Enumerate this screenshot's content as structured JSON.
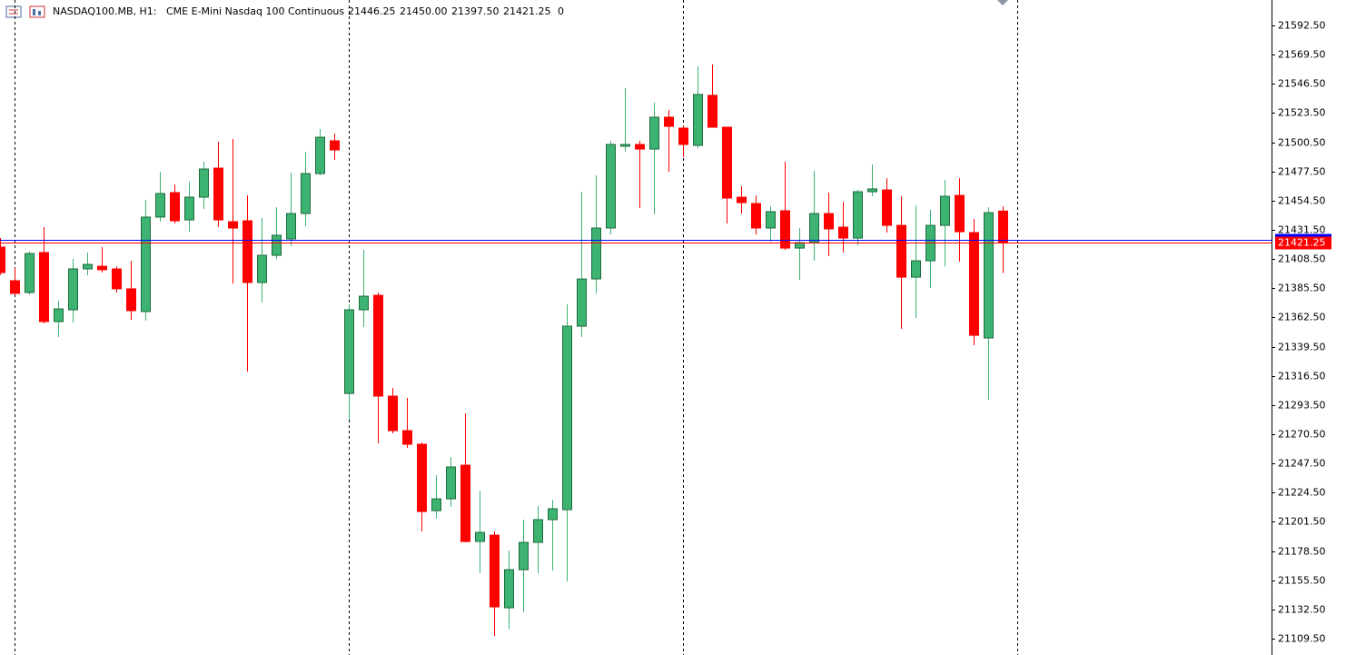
{
  "chart_data": {
    "type": "candlestick",
    "header": {
      "symbol": "NASDAQ100.MB, H1:",
      "description": "CME E-Mini Nasdaq 100 Continuous",
      "ohlc": [
        "21446.25",
        "21450.00",
        "21397.50",
        "21421.25"
      ],
      "volume": "0"
    },
    "open": [
      21417.9,
      21391.4,
      21382.1,
      21413.6,
      21359.2,
      21368.5,
      21400.7,
      21402.8,
      21400.7,
      21385,
      21367.1,
      21441.5,
      21460.8,
      21439.3,
      21457.2,
      21480.1,
      21437.9,
      21438.6,
      21390,
      21411.4,
      21424.3,
      21444.3,
      21475.8,
      21501.6,
      21302.6,
      21368.5,
      21379.9,
      21300.5,
      21273.3,
      21262.6,
      21210.3,
      21219.6,
      21246.1,
      21186,
      21191,
      21133.8,
      21163.8,
      21185.3,
      21203.2,
      21211.1,
      21355.6,
      21392.8,
      21432.9,
      21497.3,
      21498.7,
      21495.1,
      21520.2,
      21511.6,
      21498,
      21537.4,
      21512.3,
      21457.2,
      21452.2,
      21432.9,
      21446.5,
      21417.1,
      21421.4,
      21444.3,
      21433.6,
      21425,
      21461.5,
      21462.9,
      21435,
      21394.2,
      21407.1,
      21435,
      21458.6,
      21429.3,
      21346.3,
      21446.25
    ],
    "high": [
      21425,
      21401.4,
      21414.3,
      21433.6,
      21375.6,
      21408.5,
      21413.6,
      21418,
      21402.8,
      21407.1,
      21455.1,
      21477.3,
      21467.2,
      21469.4,
      21485.1,
      21500.9,
      21503,
      21458.6,
      21440.8,
      21449.3,
      21476.5,
      21493,
      21510.9,
      21507.3,
      21372.8,
      21415.7,
      21382.1,
      21306.9,
      21299.1,
      21264,
      21238.3,
      21252.5,
      21286.9,
      21226.1,
      21193.9,
      21178.9,
      21203.2,
      21213.9,
      21218.9,
      21372.8,
      21461.5,
      21474.4,
      21501.6,
      21543.1,
      21501.6,
      21531.6,
      21525.9,
      21513.7,
      21560.3,
      21561.7,
      21512.3,
      21465.8,
      21458.6,
      21450.1,
      21485.1,
      21432.9,
      21478,
      21460.8,
      21453.6,
      21462.9,
      21483,
      21472.2,
      21457.9,
      21450.8,
      21447.2,
      21470.8,
      21472.2,
      21440,
      21449.3,
      21450
    ],
    "low": [
      21396,
      21380,
      21380.6,
      21357.75,
      21347,
      21358.5,
      21395.7,
      21397.8,
      21382.1,
      21360.6,
      21359.9,
      21437.9,
      21436.5,
      21430,
      21447.9,
      21433.6,
      21389.2,
      21319.8,
      21374.2,
      21408.5,
      21418.6,
      21434.3,
      21474.4,
      21486.6,
      21281.9,
      21354.9,
      21263.3,
      21271.2,
      21259.7,
      21193.9,
      21203.9,
      21213.2,
      21185.3,
      21161,
      21111.6,
      21117.3,
      21130.2,
      21161,
      21163.1,
      21154.5,
      21347,
      21381.4,
      21427.9,
      21493,
      21448.6,
      21443.6,
      21477.3,
      21488.7,
      21495.9,
      21512.3,
      21436.5,
      21444.3,
      21427.9,
      21422.2,
      21415.7,
      21392.1,
      21407.1,
      21410.7,
      21413.6,
      21419.3,
      21457.9,
      21429.3,
      21353.5,
      21362,
      21385.7,
      21402.8,
      21406.4,
      21340.6,
      21297.6,
      21397.5
    ],
    "close": [
      21397.8,
      21381.4,
      21412.8,
      21359.2,
      21369.2,
      21400.7,
      21404.25,
      21400,
      21385,
      21367.8,
      21441.5,
      21460.1,
      21438.6,
      21457.2,
      21479.4,
      21439.3,
      21432.9,
      21390,
      21411.4,
      21427.2,
      21444.3,
      21475.8,
      21504.4,
      21494.4,
      21368.5,
      21379.2,
      21300.5,
      21273.3,
      21262.6,
      21209.6,
      21219.6,
      21244.7,
      21186,
      21193.2,
      21134.5,
      21163.8,
      21185.3,
      21203.2,
      21211.8,
      21355.6,
      21392.8,
      21432.9,
      21498.7,
      21498.7,
      21495.1,
      21520.2,
      21513,
      21498.7,
      21538.1,
      21512.3,
      21456.5,
      21452.9,
      21432.9,
      21445.8,
      21417.1,
      21421.4,
      21444.3,
      21432.2,
      21425,
      21461.5,
      21463.7,
      21435,
      21394.2,
      21407.1,
      21435,
      21457.9,
      21430,
      21348.4,
      21445,
      21421.25
    ],
    "up_color": "#3cb371",
    "down_color": "#ff0000",
    "separator_before_candle": [
      1,
      24,
      47,
      70
    ],
    "ask_line": 21423.75,
    "bid_label": {
      "value": 21421.25,
      "label": "21421.25"
    },
    "ylim": [
      21096.6,
      21612.5
    ],
    "yticks": [
      {
        "value": 21592.5,
        "label": "21592.50"
      },
      {
        "value": 21569.5,
        "label": "21569.50"
      },
      {
        "value": 21546.5,
        "label": "21546.50"
      },
      {
        "value": 21523.5,
        "label": "21523.50"
      },
      {
        "value": 21500.5,
        "label": "21500.50"
      },
      {
        "value": 21477.5,
        "label": "21477.50"
      },
      {
        "value": 21454.5,
        "label": "21454.50"
      },
      {
        "value": 21431.5,
        "label": "21431.50"
      },
      {
        "value": 21408.5,
        "label": "21408.50"
      },
      {
        "value": 21385.5,
        "label": "21385.50"
      },
      {
        "value": 21362.5,
        "label": "21362.50"
      },
      {
        "value": 21339.5,
        "label": "21339.50"
      },
      {
        "value": 21316.5,
        "label": "21316.50"
      },
      {
        "value": 21293.5,
        "label": "21293.50"
      },
      {
        "value": 21270.5,
        "label": "21270.50"
      },
      {
        "value": 21247.5,
        "label": "21247.50"
      },
      {
        "value": 21224.5,
        "label": "21224.50"
      },
      {
        "value": 21201.5,
        "label": "21201.50"
      },
      {
        "value": 21178.5,
        "label": "21178.50"
      },
      {
        "value": 21155.5,
        "label": "21155.50"
      },
      {
        "value": 21132.5,
        "label": "21132.50"
      },
      {
        "value": 21109.5,
        "label": "21109.50"
      }
    ]
  }
}
